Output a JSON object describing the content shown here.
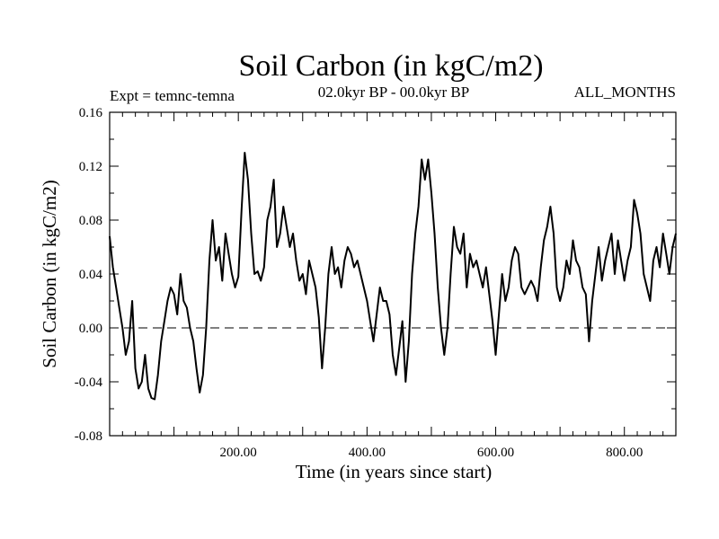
{
  "chart_data": {
    "type": "line",
    "title": "Soil Carbon (in kgC/m2)",
    "left_header": "Expt = temnc-temna",
    "center_header": "02.0kyr BP - 00.0kyr BP",
    "right_header": "ALL_MONTHS",
    "xlabel": "Time (in years since start)",
    "ylabel": "Soil Carbon (in kgC/m2)",
    "xlim": [
      0,
      880
    ],
    "ylim": [
      -0.08,
      0.16
    ],
    "x_ticks": [
      200,
      400,
      600,
      800
    ],
    "x_tick_labels": [
      "200.00",
      "400.00",
      "600.00",
      "800.00"
    ],
    "y_ticks": [
      -0.08,
      -0.04,
      0.0,
      0.04,
      0.08,
      0.12,
      0.16
    ],
    "y_tick_labels": [
      "-0.08",
      "-0.04",
      "0.00",
      "0.04",
      "0.08",
      "0.12",
      "0.16"
    ],
    "reference_line": 0.0,
    "series": [
      {
        "name": "temnc-temna",
        "x": [
          0,
          5,
          10,
          15,
          20,
          25,
          30,
          35,
          40,
          45,
          50,
          55,
          60,
          65,
          70,
          75,
          80,
          85,
          90,
          95,
          100,
          105,
          110,
          115,
          120,
          125,
          130,
          135,
          140,
          145,
          150,
          155,
          160,
          165,
          170,
          175,
          180,
          185,
          190,
          195,
          200,
          205,
          210,
          215,
          220,
          225,
          230,
          235,
          240,
          245,
          250,
          255,
          260,
          265,
          270,
          275,
          280,
          285,
          290,
          295,
          300,
          305,
          310,
          315,
          320,
          325,
          330,
          335,
          340,
          345,
          350,
          355,
          360,
          365,
          370,
          375,
          380,
          385,
          390,
          395,
          400,
          405,
          410,
          415,
          420,
          425,
          430,
          435,
          440,
          445,
          450,
          455,
          460,
          465,
          470,
          475,
          480,
          485,
          490,
          495,
          500,
          505,
          510,
          515,
          520,
          525,
          530,
          535,
          540,
          545,
          550,
          555,
          560,
          565,
          570,
          575,
          580,
          585,
          590,
          595,
          600,
          605,
          610,
          615,
          620,
          625,
          630,
          635,
          640,
          645,
          650,
          655,
          660,
          665,
          670,
          675,
          680,
          685,
          690,
          695,
          700,
          705,
          710,
          715,
          720,
          725,
          730,
          735,
          740,
          745,
          750,
          755,
          760,
          765,
          770,
          775,
          780,
          785,
          790,
          795,
          800,
          805,
          810,
          815,
          820,
          825,
          830,
          835,
          840,
          845,
          850,
          855,
          860,
          865,
          870,
          875,
          880
        ],
        "y": [
          0.068,
          0.045,
          0.03,
          0.015,
          0.0,
          -0.02,
          -0.01,
          0.02,
          -0.03,
          -0.045,
          -0.04,
          -0.02,
          -0.045,
          -0.052,
          -0.053,
          -0.035,
          -0.01,
          0.005,
          0.02,
          0.03,
          0.025,
          0.01,
          0.04,
          0.02,
          0.015,
          0.0,
          -0.01,
          -0.03,
          -0.048,
          -0.035,
          0.0,
          0.05,
          0.08,
          0.05,
          0.06,
          0.035,
          0.07,
          0.055,
          0.04,
          0.03,
          0.038,
          0.088,
          0.13,
          0.11,
          0.07,
          0.04,
          0.042,
          0.035,
          0.045,
          0.08,
          0.09,
          0.11,
          0.06,
          0.07,
          0.09,
          0.075,
          0.06,
          0.07,
          0.05,
          0.035,
          0.04,
          0.025,
          0.05,
          0.04,
          0.03,
          0.008,
          -0.03,
          0.0,
          0.04,
          0.06,
          0.04,
          0.045,
          0.03,
          0.05,
          0.06,
          0.055,
          0.045,
          0.05,
          0.04,
          0.03,
          0.02,
          0.005,
          -0.01,
          0.01,
          0.03,
          0.02,
          0.02,
          0.01,
          -0.02,
          -0.035,
          -0.015,
          0.005,
          -0.04,
          -0.01,
          0.04,
          0.07,
          0.09,
          0.125,
          0.11,
          0.125,
          0.1,
          0.07,
          0.03,
          0.0,
          -0.02,
          0.0,
          0.04,
          0.075,
          0.06,
          0.055,
          0.07,
          0.03,
          0.055,
          0.045,
          0.05,
          0.04,
          0.03,
          0.045,
          0.025,
          0.005,
          -0.02,
          0.01,
          0.04,
          0.02,
          0.03,
          0.05,
          0.06,
          0.055,
          0.03,
          0.025,
          0.03,
          0.035,
          0.03,
          0.02,
          0.045,
          0.065,
          0.075,
          0.09,
          0.07,
          0.03,
          0.02,
          0.03,
          0.05,
          0.04,
          0.065,
          0.05,
          0.045,
          0.03,
          0.025,
          -0.01,
          0.02,
          0.04,
          0.06,
          0.035,
          0.05,
          0.06,
          0.07,
          0.04,
          0.065,
          0.05,
          0.035,
          0.05,
          0.06,
          0.095,
          0.085,
          0.07,
          0.04,
          0.03,
          0.02,
          0.05,
          0.06,
          0.045,
          0.07,
          0.055,
          0.04,
          0.06,
          0.07
        ]
      }
    ]
  }
}
